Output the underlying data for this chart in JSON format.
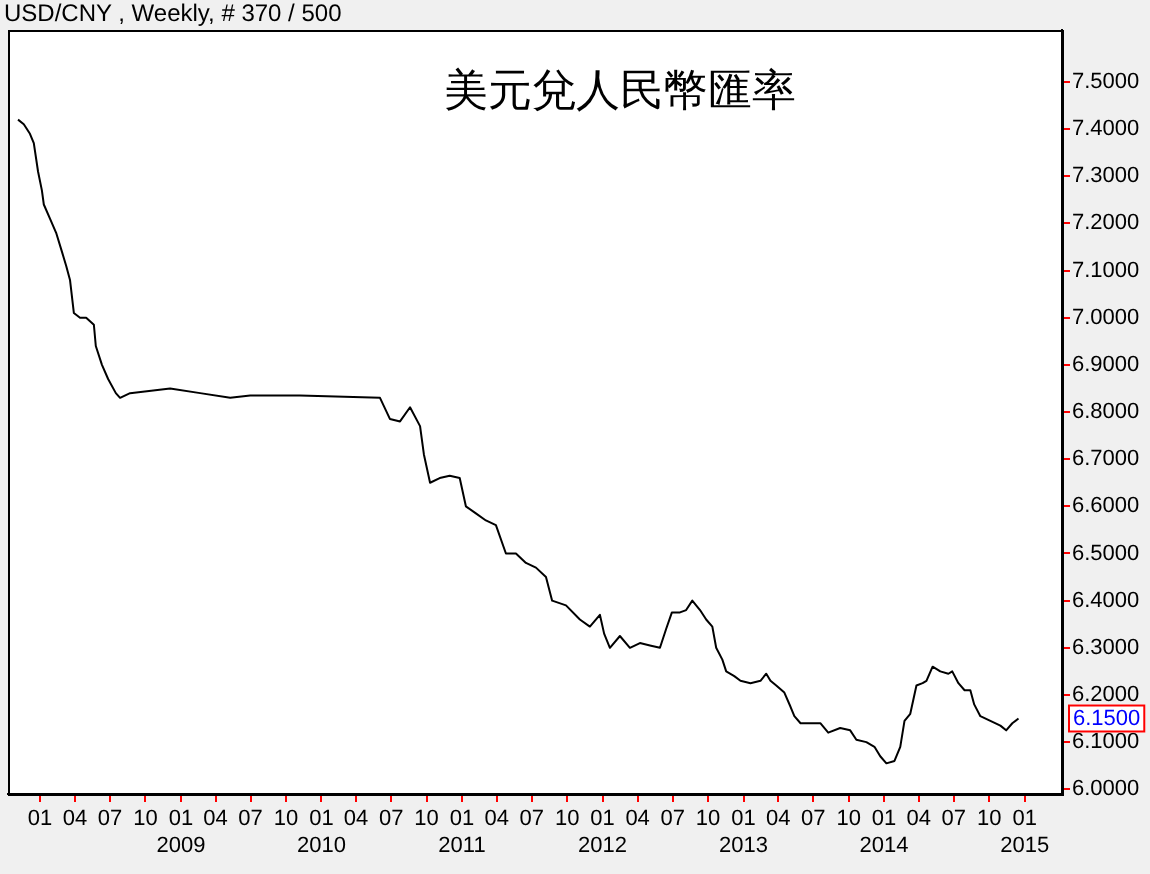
{
  "chart_data": {
    "type": "line",
    "subtitle": "USD/CNY , Weekly, # 370 / 500",
    "title": "美元兌人民幣匯率",
    "color": "#000000",
    "marker": "none",
    "line_style": "solid",
    "x": [
      "2007-11-05",
      "2007-11-20",
      "2007-12-06",
      "2007-12-16",
      "2007-12-27",
      "2008-01-06",
      "2008-01-11",
      "2008-01-27",
      "2008-02-12",
      "2008-02-27",
      "2008-03-09",
      "2008-03-19",
      "2008-03-29",
      "2008-04-14",
      "2008-04-30",
      "2008-05-20",
      "2008-05-25",
      "2008-06-10",
      "2008-06-26",
      "2008-07-16",
      "2008-07-27",
      "2008-08-22",
      "2008-12-04",
      "2009-02-20",
      "2009-05-09",
      "2009-06-30",
      "2009-11-06",
      "2010-06-02",
      "2010-06-28",
      "2010-07-24",
      "2010-08-19",
      "2010-09-14",
      "2010-09-24",
      "2010-10-10",
      "2010-11-04",
      "2010-11-30",
      "2010-12-26",
      "2011-01-11",
      "2011-02-06",
      "2011-03-04",
      "2011-03-30",
      "2011-04-25",
      "2011-05-21",
      "2011-06-16",
      "2011-07-12",
      "2011-08-07",
      "2011-08-23",
      "2011-09-28",
      "2011-11-03",
      "2011-11-29",
      "2011-12-25",
      "2012-01-05",
      "2012-01-20",
      "2012-02-15",
      "2012-03-12",
      "2012-04-07",
      "2012-05-03",
      "2012-05-29",
      "2012-06-14",
      "2012-06-29",
      "2012-07-20",
      "2012-08-05",
      "2012-08-21",
      "2012-09-10",
      "2012-09-26",
      "2012-10-12",
      "2012-10-22",
      "2012-11-07",
      "2012-11-17",
      "2012-12-08",
      "2012-12-24",
      "2013-01-19",
      "2013-02-14",
      "2013-03-01",
      "2013-03-12",
      "2013-03-27",
      "2013-04-17",
      "2013-05-03",
      "2013-05-13",
      "2013-05-29",
      "2013-06-24",
      "2013-07-20",
      "2013-08-09",
      "2013-09-09",
      "2013-10-05",
      "2013-10-21",
      "2013-11-16",
      "2013-12-07",
      "2013-12-22",
      "2014-01-07",
      "2014-01-28",
      "2014-02-12",
      "2014-02-23",
      "2014-03-10",
      "2014-03-26",
      "2014-04-11",
      "2014-04-21",
      "2014-05-07",
      "2014-05-27",
      "2014-06-17",
      "2014-06-27",
      "2014-07-13",
      "2014-07-29",
      "2014-08-13",
      "2014-08-23",
      "2014-09-08",
      "2014-10-04",
      "2014-10-30",
      "2014-11-14",
      "2014-11-30",
      "2014-12-16"
    ],
    "values": [
      7.42,
      7.41,
      7.39,
      7.37,
      7.31,
      7.27,
      7.24,
      7.21,
      7.18,
      7.14,
      7.11,
      7.08,
      7.01,
      7.0,
      7.0,
      6.985,
      6.94,
      6.9,
      6.87,
      6.84,
      6.83,
      6.84,
      6.85,
      6.84,
      6.83,
      6.835,
      6.835,
      6.83,
      6.785,
      6.78,
      6.81,
      6.77,
      6.71,
      6.65,
      6.66,
      6.665,
      6.66,
      6.6,
      6.585,
      6.57,
      6.56,
      6.5,
      6.5,
      6.48,
      6.47,
      6.45,
      6.4,
      6.39,
      6.36,
      6.345,
      6.37,
      6.33,
      6.3,
      6.325,
      6.3,
      6.31,
      6.305,
      6.3,
      6.34,
      6.375,
      6.375,
      6.38,
      6.4,
      6.38,
      6.36,
      6.345,
      6.3,
      6.275,
      6.25,
      6.24,
      6.23,
      6.225,
      6.23,
      6.245,
      6.23,
      6.22,
      6.205,
      6.175,
      6.155,
      6.14,
      6.14,
      6.14,
      6.12,
      6.13,
      6.125,
      6.105,
      6.1,
      6.09,
      6.07,
      6.055,
      6.06,
      6.09,
      6.145,
      6.16,
      6.22,
      6.225,
      6.23,
      6.26,
      6.25,
      6.245,
      6.25,
      6.225,
      6.21,
      6.21,
      6.18,
      6.155,
      6.145,
      6.135,
      6.125,
      6.14,
      6.15
    ],
    "xlim": [
      "2007-10-10",
      "2015-04-08"
    ],
    "ylim": [
      5.99,
      7.61
    ],
    "xticks": [
      {
        "value": "2008-01",
        "label": "01"
      },
      {
        "value": "2008-04",
        "label": "04"
      },
      {
        "value": "2008-07",
        "label": "07"
      },
      {
        "value": "2008-10",
        "label": "10"
      },
      {
        "value": "2009-01",
        "label": "01\n2009"
      },
      {
        "value": "2009-04",
        "label": "04"
      },
      {
        "value": "2009-07",
        "label": "07"
      },
      {
        "value": "2009-10",
        "label": "10"
      },
      {
        "value": "2010-01",
        "label": "01\n2010"
      },
      {
        "value": "2010-04",
        "label": "04"
      },
      {
        "value": "2010-07",
        "label": "07"
      },
      {
        "value": "2010-10",
        "label": "10"
      },
      {
        "value": "2011-01",
        "label": "01\n2011"
      },
      {
        "value": "2011-04",
        "label": "04"
      },
      {
        "value": "2011-07",
        "label": "07"
      },
      {
        "value": "2011-10",
        "label": "10"
      },
      {
        "value": "2012-01",
        "label": "01\n2012"
      },
      {
        "value": "2012-04",
        "label": "04"
      },
      {
        "value": "2012-07",
        "label": "07"
      },
      {
        "value": "2012-10",
        "label": "10"
      },
      {
        "value": "2013-01",
        "label": "01\n2013"
      },
      {
        "value": "2013-04",
        "label": "04"
      },
      {
        "value": "2013-07",
        "label": "07"
      },
      {
        "value": "2013-10",
        "label": "10"
      },
      {
        "value": "2014-01",
        "label": "01\n2014"
      },
      {
        "value": "2014-04",
        "label": "04"
      },
      {
        "value": "2014-07",
        "label": "07"
      },
      {
        "value": "2014-10",
        "label": "10"
      },
      {
        "value": "2015-01",
        "label": "01\n2015"
      }
    ],
    "yticks": [
      {
        "value": 6.0,
        "label": "6.0000"
      },
      {
        "value": 6.1,
        "label": "6.1000"
      },
      {
        "value": 6.2,
        "label": "6.2000"
      },
      {
        "value": 6.3,
        "label": "6.3000"
      },
      {
        "value": 6.4,
        "label": "6.4000"
      },
      {
        "value": 6.5,
        "label": "6.5000"
      },
      {
        "value": 6.6,
        "label": "6.6000"
      },
      {
        "value": 6.7,
        "label": "6.7000"
      },
      {
        "value": 6.8,
        "label": "6.8000"
      },
      {
        "value": 6.9,
        "label": "6.9000"
      },
      {
        "value": 7.0,
        "label": "7.0000"
      },
      {
        "value": 7.1,
        "label": "7.1000"
      },
      {
        "value": 7.2,
        "label": "7.2000"
      },
      {
        "value": 7.3,
        "label": "7.3000"
      },
      {
        "value": 7.4,
        "label": "7.4000"
      },
      {
        "value": 7.5,
        "label": "7.5000"
      }
    ],
    "annotations": [
      {
        "text": "6.1500",
        "y": 6.15
      }
    ]
  }
}
